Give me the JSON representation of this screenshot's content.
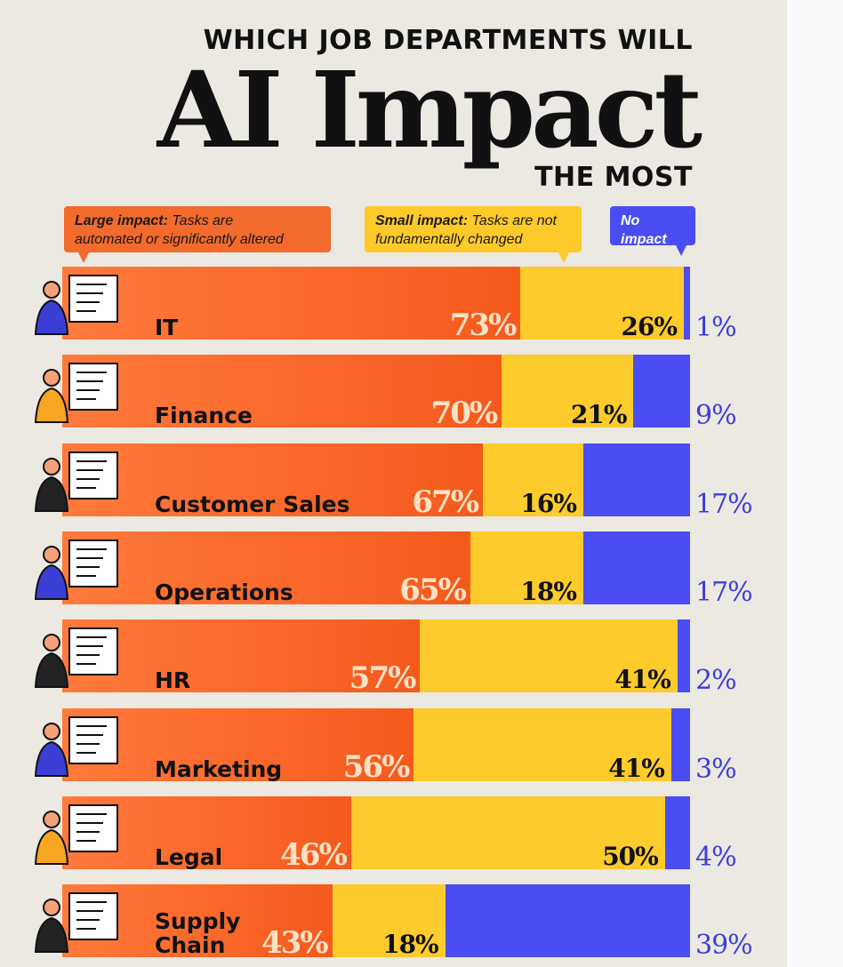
{
  "header": {
    "subtitle": "WHICH JOB DEPARTMENTS WILL",
    "title": "AI Impact",
    "subtitle2": "THE MOST"
  },
  "legend": {
    "large": {
      "label": "Large impact:",
      "desc_1": "Tasks are",
      "desc_2": "automated or significantly altered",
      "color": "#f26a2c"
    },
    "small": {
      "label": "Small impact:",
      "desc_1": "Tasks are not",
      "desc_2": "fundamentally changed",
      "color": "#fdca2a"
    },
    "none": {
      "label": "No impact",
      "color": "#4a4ef2"
    }
  },
  "chart_data": {
    "type": "bar",
    "stacked": true,
    "orientation": "horizontal",
    "categories": [
      "IT",
      "Finance",
      "Customer Sales",
      "Operations",
      "HR",
      "Marketing",
      "Legal",
      "Supply Chain"
    ],
    "series": [
      {
        "name": "Large impact",
        "values": [
          73,
          70,
          67,
          65,
          57,
          56,
          46,
          43
        ],
        "labels": [
          "73%",
          "70%",
          "67%",
          "65%",
          "57%",
          "56%",
          "46%",
          "43%"
        ]
      },
      {
        "name": "Small impact",
        "values": [
          26,
          21,
          16,
          18,
          41,
          41,
          50,
          18
        ],
        "labels": [
          "26%",
          "21%",
          "16%",
          "18%",
          "41%",
          "41%",
          "50%",
          "18%"
        ]
      },
      {
        "name": "No impact",
        "values": [
          1,
          9,
          17,
          17,
          2,
          3,
          4,
          39
        ],
        "labels": [
          "1%",
          "9%",
          "17%",
          "17%",
          "2%",
          "3%",
          "4%",
          "39%"
        ]
      }
    ],
    "xlim": [
      0,
      100
    ]
  },
  "department_labels": {
    "it": "IT",
    "finance": "Finance",
    "customer_sales": "Customer Sales",
    "operations": "Operations",
    "hr": "HR",
    "marketing": "Marketing",
    "legal": "Legal",
    "supply_chain_1": "Supply",
    "supply_chain_2": "Chain"
  },
  "icons": [
    "coder-icon",
    "coin-stack-icon",
    "box-delivery-icon",
    "calendar-board-icon",
    "video-call-icon",
    "marketing-board-icon",
    "scales-of-justice-icon",
    "warehouse-worker-icon"
  ]
}
